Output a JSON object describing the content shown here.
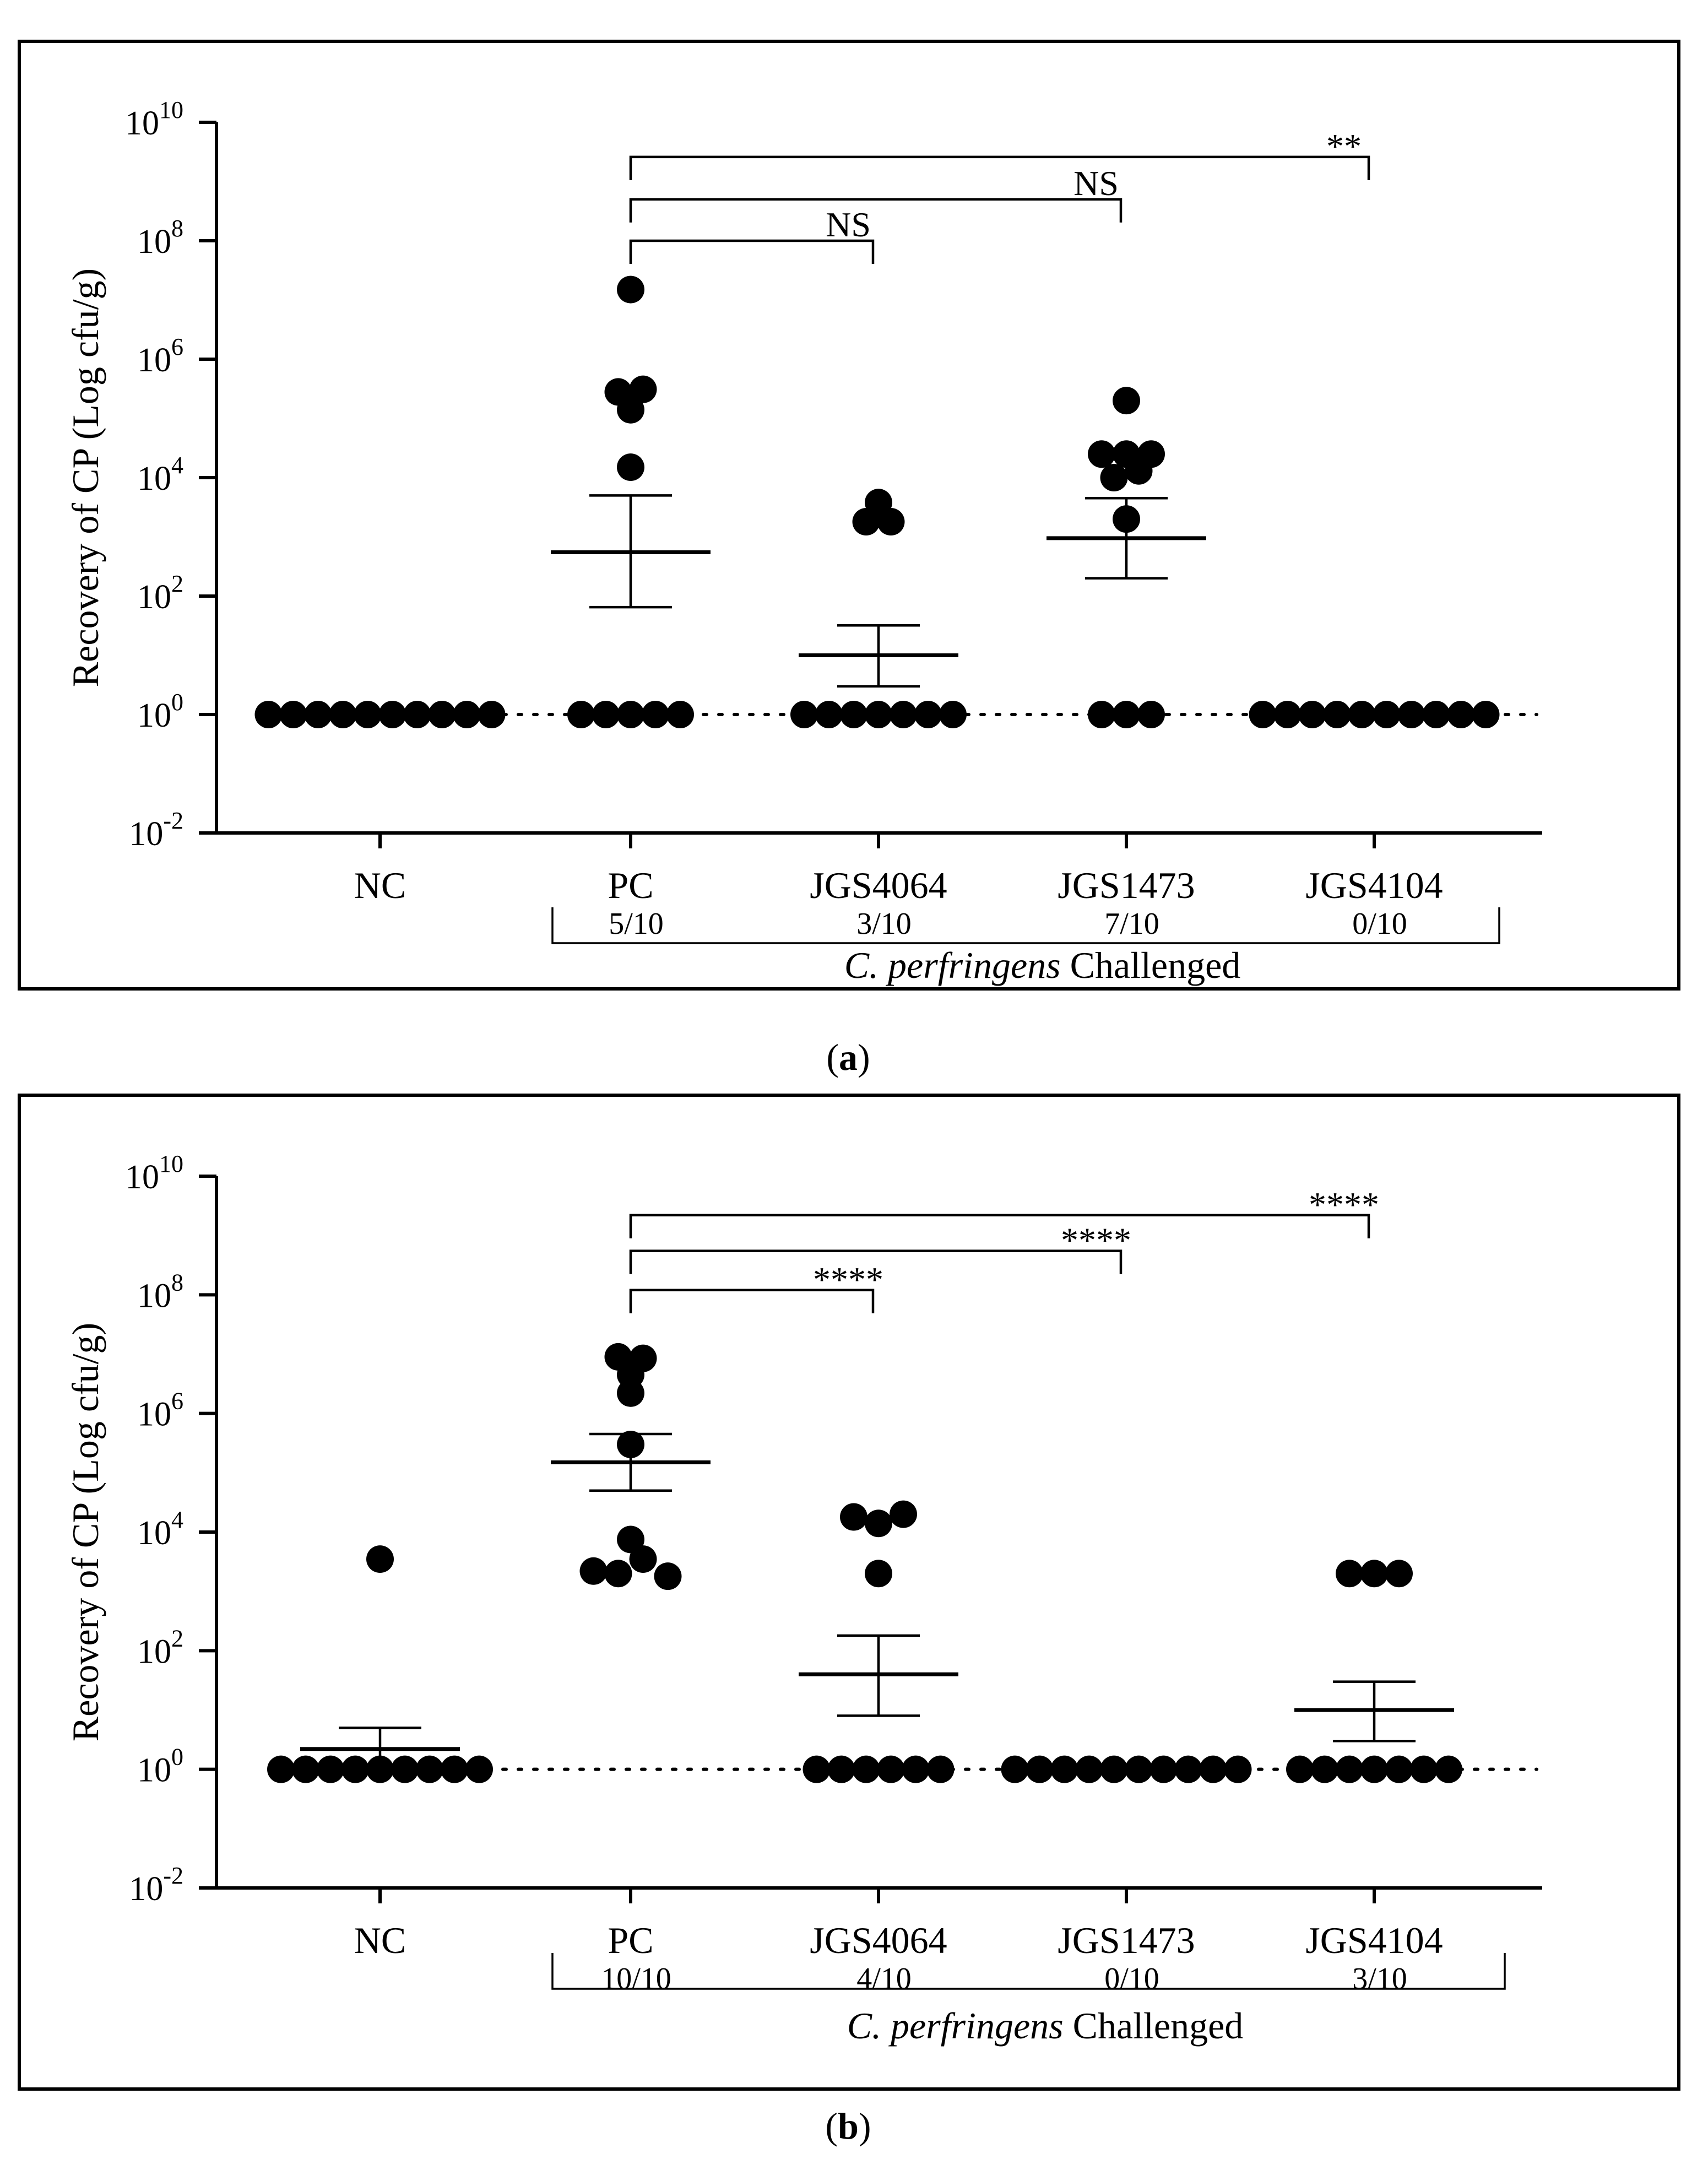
{
  "panels_meta": [
    "(a)",
    "(b)"
  ],
  "chart_data": [
    {
      "type": "scatter",
      "panel_label": "a",
      "panel_caption": "(a)",
      "title": "",
      "ylabel": "Recovery of CP (Log cfu/g)",
      "yscale": "log10",
      "ylim": [
        0.01,
        10000000000
      ],
      "y_ticks": [
        {
          "base": "10",
          "exp": "10"
        },
        {
          "base": "10",
          "exp": "8"
        },
        {
          "base": "10",
          "exp": "6"
        },
        {
          "base": "10",
          "exp": "4"
        },
        {
          "base": "10",
          "exp": "2"
        },
        {
          "base": "10",
          "exp": "0"
        },
        {
          "base": "10",
          "exp": "-2"
        }
      ],
      "reference_line": 1,
      "categories": [
        "NC",
        "PC",
        "JGS4064",
        "JGS1473",
        "JGS4104"
      ],
      "fractions": [
        "",
        "5/10",
        "3/10",
        "7/10",
        "0/10"
      ],
      "group_label_italic": "C. perfringens",
      "group_label_rest": " Challenged",
      "series": [
        {
          "name": "NC",
          "values": [
            1,
            1,
            1,
            1,
            1,
            1,
            1,
            1,
            1,
            1
          ],
          "mean": 1,
          "sem_low": 1,
          "sem_high": 1
        },
        {
          "name": "PC",
          "values": [
            15000000,
            280000,
            140000,
            310000,
            15000,
            1,
            1,
            1,
            1,
            1
          ],
          "mean": 550,
          "sem_low": 65,
          "sem_high": 5000
        },
        {
          "name": "JGS4064",
          "values": [
            1800,
            1800,
            3800,
            1,
            1,
            1,
            1,
            1,
            1,
            1
          ],
          "mean": 10,
          "sem_low": 3,
          "sem_high": 32
        },
        {
          "name": "JGS1473",
          "values": [
            200000,
            25000,
            25000,
            25000,
            10000,
            13000,
            2000,
            1,
            1,
            1
          ],
          "mean": 950,
          "sem_low": 200,
          "sem_high": 4500
        },
        {
          "name": "JGS4104",
          "values": [
            1,
            1,
            1,
            1,
            1,
            1,
            1,
            1,
            1,
            1
          ],
          "mean": 1,
          "sem_low": 1,
          "sem_high": 1
        }
      ],
      "comparisons": [
        {
          "from": "PC",
          "to": "JGS4064",
          "label": "NS",
          "level": 100000000
        },
        {
          "from": "PC",
          "to": "JGS1473",
          "label": "NS",
          "level": 500000000
        },
        {
          "from": "PC",
          "to": "JGS4104",
          "label": "**",
          "level": 2600000000
        }
      ]
    },
    {
      "type": "scatter",
      "panel_label": "b",
      "panel_caption": "(b)",
      "title": "",
      "ylabel": "Recovery of CP (Log cfu/g)",
      "yscale": "log10",
      "ylim": [
        0.01,
        10000000000
      ],
      "y_ticks": [
        {
          "base": "10",
          "exp": "10"
        },
        {
          "base": "10",
          "exp": "8"
        },
        {
          "base": "10",
          "exp": "6"
        },
        {
          "base": "10",
          "exp": "4"
        },
        {
          "base": "10",
          "exp": "2"
        },
        {
          "base": "10",
          "exp": "0"
        },
        {
          "base": "10",
          "exp": "-2"
        }
      ],
      "reference_line": 1,
      "categories": [
        "NC",
        "PC",
        "JGS4064",
        "JGS1473",
        "JGS4104"
      ],
      "fractions": [
        "",
        "10/10",
        "4/10",
        "0/10",
        "3/10"
      ],
      "group_label_italic": "C. perfringens",
      "group_label_rest": " Challenged",
      "series": [
        {
          "name": "NC",
          "values": [
            3500,
            1,
            1,
            1,
            1,
            1,
            1,
            1,
            1,
            1
          ],
          "mean": 2.2,
          "sem_low": 1,
          "sem_high": 5
        },
        {
          "name": "PC",
          "values": [
            9000000,
            8500000,
            4500000,
            2200000,
            300000,
            2200,
            2000,
            7500,
            3500,
            1800
          ],
          "mean": 150000,
          "sem_low": 50000,
          "sem_high": 450000
        },
        {
          "name": "JGS4064",
          "values": [
            18000,
            14000,
            20000,
            2000,
            1,
            1,
            1,
            1,
            1,
            1
          ],
          "mean": 40,
          "sem_low": 8,
          "sem_high": 180
        },
        {
          "name": "JGS1473",
          "values": [
            1,
            1,
            1,
            1,
            1,
            1,
            1,
            1,
            1,
            1
          ],
          "mean": 1,
          "sem_low": 1,
          "sem_high": 1
        },
        {
          "name": "JGS4104",
          "values": [
            2000,
            2000,
            2000,
            1,
            1,
            1,
            1,
            1,
            1,
            1
          ],
          "mean": 10,
          "sem_low": 3,
          "sem_high": 30
        }
      ],
      "comparisons": [
        {
          "from": "PC",
          "to": "JGS4064",
          "label": "****",
          "level": 120000000
        },
        {
          "from": "PC",
          "to": "JGS1473",
          "label": "****",
          "level": 550000000
        },
        {
          "from": "PC",
          "to": "JGS4104",
          "label": "****",
          "level": 2200000000
        }
      ]
    }
  ]
}
